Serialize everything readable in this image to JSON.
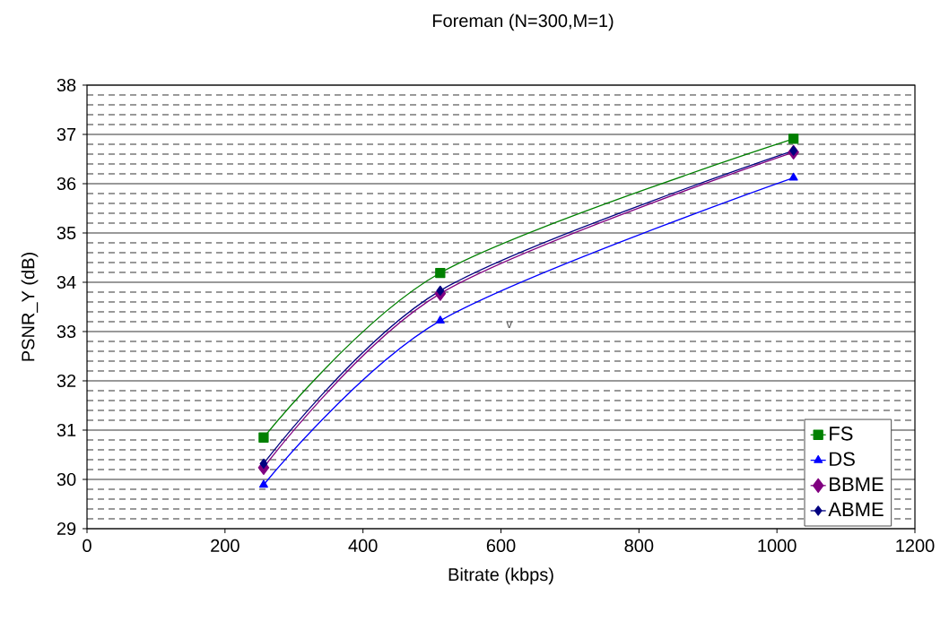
{
  "chart_data": {
    "type": "line",
    "title": "Foreman (N=300,M=1)",
    "xlabel": "Bitrate (kbps)",
    "ylabel": "PSNR_Y (dB)",
    "x": [
      256,
      512,
      1024
    ],
    "series": [
      {
        "name": "FS",
        "color": "#008000",
        "marker": "square",
        "values": [
          30.85,
          34.19,
          36.91
        ]
      },
      {
        "name": "DS",
        "color": "#0000ff",
        "marker": "triangle",
        "values": [
          29.89,
          33.22,
          36.12
        ]
      },
      {
        "name": "BBME",
        "color": "#800080",
        "marker": "diamond",
        "values": [
          30.24,
          33.77,
          36.64
        ]
      },
      {
        "name": "ABME",
        "color": "#000080",
        "marker": "diamond",
        "values": [
          30.32,
          33.83,
          36.67
        ]
      }
    ],
    "xlim": [
      0,
      1200
    ],
    "xticks": [
      0,
      200,
      400,
      600,
      800,
      1000,
      1200
    ],
    "ylim": [
      29,
      38
    ],
    "yticks": [
      29,
      {
        "value": 29.2,
        "label": null
      },
      {
        "value": 29.4,
        "label": null
      },
      {
        "value": 29.6,
        "label": null
      },
      {
        "value": 29.8,
        "label": null
      },
      30,
      {
        "value": 30.2,
        "label": null
      },
      {
        "value": 30.4,
        "label": null
      },
      {
        "value": 30.6,
        "label": null
      },
      {
        "value": 30.8,
        "label": null
      },
      31,
      {
        "value": 31.2,
        "label": null
      },
      {
        "value": 31.4,
        "label": null
      },
      {
        "value": 31.6,
        "label": null
      },
      {
        "value": 31.8,
        "label": null
      },
      32,
      {
        "value": 32.2,
        "label": null
      },
      {
        "value": 32.4,
        "label": null
      },
      {
        "value": 32.6,
        "label": null
      },
      {
        "value": 32.8,
        "label": null
      },
      33,
      {
        "value": 33.2,
        "label": null
      },
      {
        "value": 33.4,
        "label": null
      },
      {
        "value": 33.6,
        "label": null
      },
      {
        "value": 33.8,
        "label": null
      },
      34,
      {
        "value": 34.2,
        "label": null
      },
      {
        "value": 34.4,
        "label": null
      },
      {
        "value": 34.6,
        "label": null
      },
      {
        "value": 34.8,
        "label": null
      },
      35,
      {
        "value": 35.2,
        "label": null
      },
      {
        "value": 35.4,
        "label": null
      },
      {
        "value": 35.6,
        "label": null
      },
      {
        "value": 35.8,
        "label": null
      },
      36,
      {
        "value": 36.2,
        "label": null
      },
      {
        "value": 36.4,
        "label": null
      },
      {
        "value": 36.6,
        "label": null
      },
      {
        "value": 36.8,
        "label": null
      },
      37,
      {
        "value": 37.2,
        "label": null
      },
      {
        "value": 37.4,
        "label": null
      },
      {
        "value": 37.6,
        "label": null
      },
      {
        "value": 37.8,
        "label": null
      },
      38
    ],
    "grid": "y",
    "legend": "bottom right",
    "annotations": [
      "v"
    ]
  }
}
